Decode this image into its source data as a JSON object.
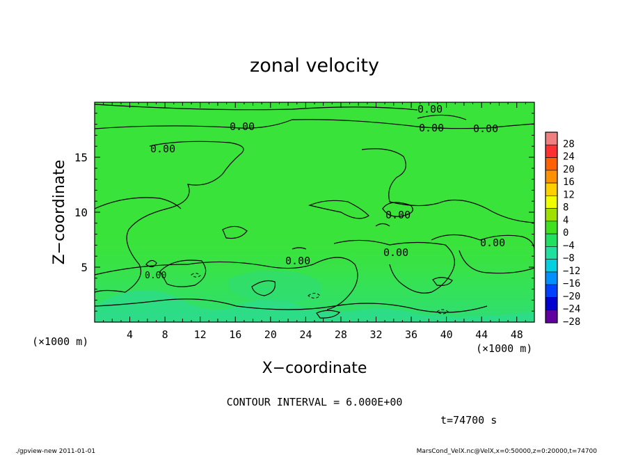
{
  "chart_data": {
    "type": "heatmap",
    "title": "zonal velocity",
    "xlabel": "X−coordinate",
    "ylabel": "Z−coordinate",
    "x_unit_label": "(×1000 m)",
    "y_unit_label": "(×1000 m)",
    "xlim": [
      0,
      50
    ],
    "ylim": [
      0,
      20
    ],
    "x_ticks": [
      4,
      8,
      12,
      16,
      20,
      24,
      28,
      32,
      36,
      40,
      44,
      48
    ],
    "y_ticks": [
      5,
      10,
      15
    ],
    "colorbar": {
      "levels": [
        28,
        24,
        20,
        16,
        12,
        8,
        4,
        0,
        -4,
        -8,
        -12,
        -16,
        -20,
        -24,
        -28
      ],
      "labels": [
        "28",
        "24",
        "20",
        "16",
        "12",
        "8",
        "4",
        "0",
        "−4",
        "−8",
        "−12",
        "−16",
        "−20",
        "−24",
        "−28"
      ],
      "colors": [
        "#f08080",
        "#ff3030",
        "#ff6000",
        "#ff9000",
        "#ffd000",
        "#f0ff00",
        "#a0e000",
        "#40e020",
        "#20e060",
        "#20e0a0",
        "#00d0e0",
        "#0090ff",
        "#0040ff",
        "#0000d0",
        "#6000a0"
      ]
    },
    "contour_labels": [
      "0.00",
      "0.00",
      "0.00",
      "0.00",
      "0.00",
      "0.00",
      "0.00",
      "0.00",
      "0.00",
      "0.00"
    ],
    "contour_interval_text": "CONTOUR INTERVAL = 6.000E+00",
    "time_text": "t=74700 s"
  },
  "footer": {
    "left": "./gpview-new  2011-01-01",
    "right": "MarsCond_VelX.nc@VelX,x=0:50000,z=0:20000,t=74700"
  },
  "colors": {
    "field_main": "#33e336",
    "field_low": "#2fe07a"
  }
}
